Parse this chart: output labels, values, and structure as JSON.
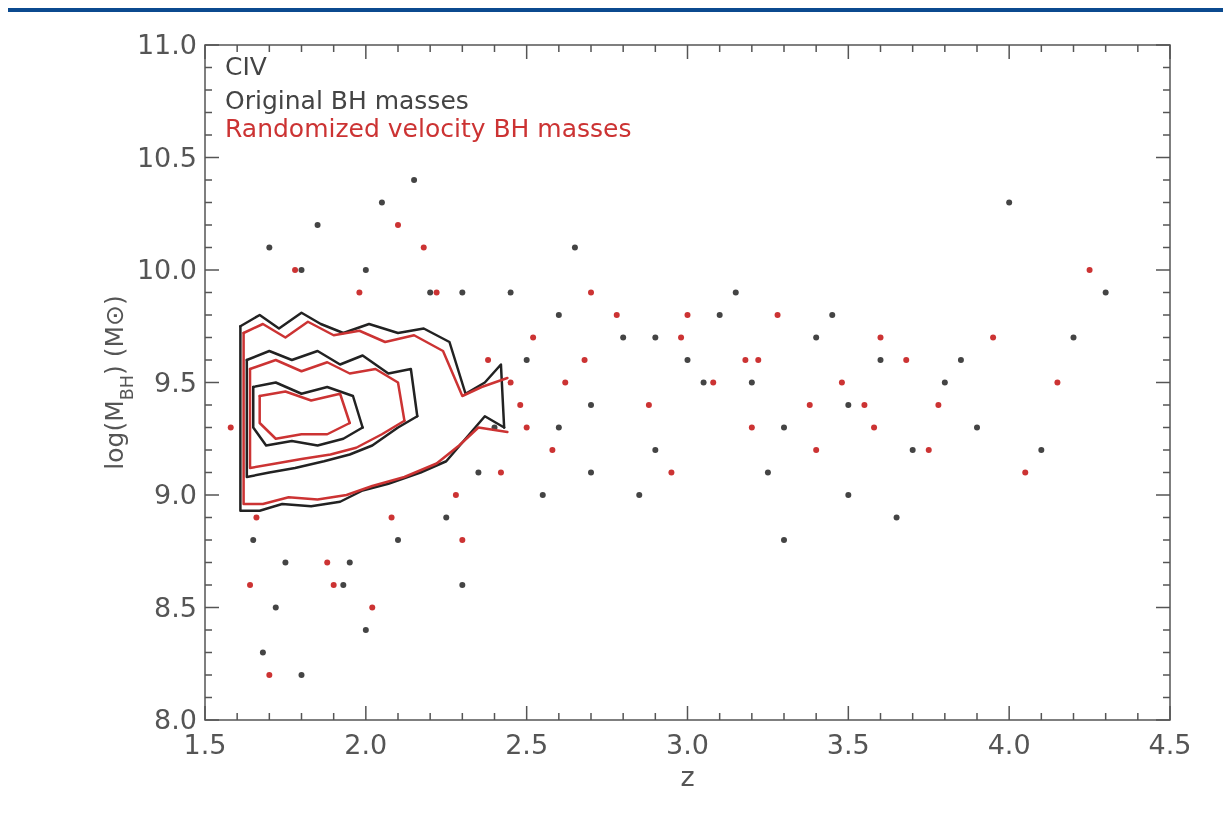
{
  "chart_data": {
    "type": "scatter",
    "xlabel": "z",
    "ylabel": "log(M$_{BH}$) (M⊙)",
    "annotations": [
      "CIV"
    ],
    "legend": "top left",
    "marker": "circle",
    "grid": false,
    "xlim": [
      1.5,
      4.5
    ],
    "ylim": [
      8.0,
      11.0
    ],
    "xticks": [
      1.5,
      {
        "value": 1.6,
        "label": null
      },
      {
        "value": 1.7,
        "label": null
      },
      {
        "value": 1.8,
        "label": null
      },
      {
        "value": 1.9,
        "label": null
      },
      {
        "value": 2.0,
        "label": "2.0"
      },
      {
        "value": 2.1,
        "label": null
      },
      {
        "value": 2.2,
        "label": null
      },
      {
        "value": 2.3,
        "label": null
      },
      {
        "value": 2.4,
        "label": null
      },
      2.5,
      {
        "value": 2.6,
        "label": null
      },
      {
        "value": 2.7,
        "label": null
      },
      {
        "value": 2.8,
        "label": null
      },
      {
        "value": 2.9,
        "label": null
      },
      {
        "value": 3.0,
        "label": "3.0"
      },
      {
        "value": 3.1,
        "label": null
      },
      {
        "value": 3.2,
        "label": null
      },
      {
        "value": 3.3,
        "label": null
      },
      {
        "value": 3.4,
        "label": null
      },
      3.5,
      {
        "value": 3.6,
        "label": null
      },
      {
        "value": 3.7,
        "label": null
      },
      {
        "value": 3.8,
        "label": null
      },
      {
        "value": 3.9,
        "label": null
      },
      {
        "value": 4.0,
        "label": "4.0"
      },
      {
        "value": 4.1,
        "label": null
      },
      {
        "value": 4.2,
        "label": null
      },
      {
        "value": 4.3,
        "label": null
      },
      {
        "value": 4.4,
        "label": null
      },
      4.5
    ],
    "yticks": [
      {
        "value": 8.0,
        "label": "8.0"
      },
      {
        "value": 8.1,
        "label": null
      },
      {
        "value": 8.2,
        "label": null
      },
      {
        "value": 8.3,
        "label": null
      },
      {
        "value": 8.4,
        "label": null
      },
      8.5,
      {
        "value": 8.6,
        "label": null
      },
      {
        "value": 8.7,
        "label": null
      },
      {
        "value": 8.8,
        "label": null
      },
      {
        "value": 8.9,
        "label": null
      },
      {
        "value": 9.0,
        "label": "9.0"
      },
      {
        "value": 9.1,
        "label": null
      },
      {
        "value": 9.2,
        "label": null
      },
      {
        "value": 9.3,
        "label": null
      },
      {
        "value": 9.4,
        "label": null
      },
      9.5,
      {
        "value": 9.6,
        "label": null
      },
      {
        "value": 9.7,
        "label": null
      },
      {
        "value": 9.8,
        "label": null
      },
      {
        "value": 9.9,
        "label": null
      },
      {
        "value": 10.0,
        "label": "10.0"
      },
      {
        "value": 10.1,
        "label": null
      },
      {
        "value": 10.2,
        "label": null
      },
      {
        "value": 10.3,
        "label": null
      },
      {
        "value": 10.4,
        "label": null
      },
      10.5,
      {
        "value": 10.6,
        "label": null
      },
      {
        "value": 10.7,
        "label": null
      },
      {
        "value": 10.8,
        "label": null
      },
      {
        "value": 10.9,
        "label": null
      },
      {
        "value": 11.0,
        "label": "11.0"
      }
    ],
    "series": [
      {
        "name": "Original BH masses",
        "color": "#444444",
        "x": [
          1.65,
          1.7,
          1.75,
          1.8,
          1.93,
          2.0,
          2.1,
          2.2,
          2.3,
          2.4,
          2.5,
          2.55,
          2.6,
          2.7,
          2.8,
          2.9,
          3.0,
          3.1,
          3.2,
          3.3,
          3.4,
          3.5,
          3.6,
          3.7,
          3.8,
          3.9,
          4.0,
          4.1,
          4.2,
          4.3,
          1.68,
          1.85,
          2.05,
          2.25,
          2.45,
          2.65,
          2.85,
          3.05,
          3.25,
          3.45,
          3.65,
          3.85,
          1.72,
          1.95,
          2.15,
          2.35,
          2.6,
          2.9,
          3.15,
          3.5,
          1.8,
          2.0,
          2.3,
          2.7,
          3.3
        ],
        "values": [
          8.8,
          10.1,
          8.7,
          10.0,
          8.6,
          10.0,
          8.8,
          9.9,
          9.9,
          9.3,
          9.6,
          9.0,
          9.8,
          9.4,
          9.7,
          9.2,
          9.6,
          9.8,
          9.5,
          9.3,
          9.7,
          9.4,
          9.6,
          9.2,
          9.5,
          9.3,
          10.3,
          9.2,
          9.7,
          9.9,
          8.3,
          10.2,
          10.3,
          8.9,
          9.9,
          10.1,
          9.0,
          9.5,
          9.1,
          9.8,
          8.9,
          9.6,
          8.5,
          8.7,
          10.4,
          9.1,
          9.3,
          9.7,
          9.9,
          9.0,
          8.2,
          8.4,
          8.6,
          9.1,
          8.8
        ]
      },
      {
        "name": "Randomized velocity BH masses",
        "color": "#cc3333",
        "x": [
          1.58,
          1.66,
          1.78,
          1.88,
          1.98,
          2.08,
          2.18,
          2.28,
          2.38,
          2.45,
          2.48,
          2.52,
          2.58,
          2.68,
          2.78,
          2.88,
          2.98,
          3.08,
          3.18,
          3.28,
          3.38,
          3.48,
          3.58,
          3.68,
          3.78,
          3.95,
          4.05,
          4.15,
          4.25,
          1.7,
          1.9,
          2.1,
          2.3,
          2.5,
          2.7,
          2.95,
          3.2,
          3.4,
          3.6,
          3.75,
          1.64,
          2.02,
          2.22,
          2.42,
          2.62,
          3.0,
          3.22,
          3.55
        ],
        "values": [
          9.3,
          8.9,
          10.0,
          8.7,
          9.9,
          8.9,
          10.1,
          9.0,
          9.6,
          9.5,
          9.4,
          9.7,
          9.2,
          9.6,
          9.8,
          9.4,
          9.7,
          9.5,
          9.6,
          9.8,
          9.4,
          9.5,
          9.3,
          9.6,
          9.4,
          9.7,
          9.1,
          9.5,
          10.0,
          8.2,
          8.6,
          10.2,
          8.8,
          9.3,
          9.9,
          9.1,
          9.3,
          9.2,
          9.7,
          9.2,
          8.6,
          8.5,
          9.9,
          9.1,
          9.5,
          9.8,
          9.6,
          9.4
        ]
      },
      {
        "type": "line",
        "marker": "none",
        "color": "#222222",
        "x": [
          1.61,
          1.67,
          1.73,
          1.8,
          1.86,
          1.93,
          2.01,
          2.1,
          2.18,
          2.26,
          2.31,
          2.37,
          2.42,
          2.43
        ],
        "values": [
          9.75,
          9.8,
          9.74,
          9.81,
          9.76,
          9.72,
          9.76,
          9.72,
          9.74,
          9.68,
          9.45,
          9.5,
          9.58,
          9.3
        ]
      },
      {
        "type": "line",
        "marker": "none",
        "color": "#222222",
        "x": [
          1.61,
          1.61,
          1.67,
          1.74,
          1.83,
          1.92,
          1.99,
          2.07,
          2.17,
          2.25,
          2.31,
          2.37,
          2.43
        ],
        "values": [
          9.75,
          8.93,
          8.93,
          8.96,
          8.95,
          8.97,
          9.02,
          9.05,
          9.1,
          9.15,
          9.25,
          9.35,
          9.3
        ]
      },
      {
        "type": "line",
        "marker": "none",
        "color": "#222222",
        "x": [
          1.63,
          1.7,
          1.77,
          1.85,
          1.92,
          1.99,
          2.07,
          2.14,
          2.16
        ],
        "values": [
          9.6,
          9.64,
          9.6,
          9.64,
          9.58,
          9.62,
          9.54,
          9.56,
          9.35
        ]
      },
      {
        "type": "line",
        "marker": "none",
        "color": "#222222",
        "x": [
          1.63,
          1.63,
          1.7,
          1.78,
          1.87,
          1.95,
          2.02,
          2.1,
          2.16
        ],
        "values": [
          9.6,
          9.08,
          9.1,
          9.12,
          9.15,
          9.18,
          9.22,
          9.3,
          9.35
        ]
      },
      {
        "type": "line",
        "marker": "none",
        "color": "#222222",
        "x": [
          1.65,
          1.72,
          1.8,
          1.88,
          1.96,
          1.99
        ],
        "values": [
          9.48,
          9.5,
          9.45,
          9.48,
          9.44,
          9.3
        ]
      },
      {
        "type": "line",
        "marker": "none",
        "color": "#222222",
        "x": [
          1.65,
          1.65,
          1.69,
          1.77,
          1.85,
          1.93,
          1.99
        ],
        "values": [
          9.48,
          9.3,
          9.22,
          9.24,
          9.22,
          9.25,
          9.3
        ]
      },
      {
        "type": "line",
        "marker": "none",
        "color": "#cc3333",
        "x": [
          1.62,
          1.68,
          1.75,
          1.82,
          1.9,
          1.98,
          2.06,
          2.15,
          2.24,
          2.3,
          2.36,
          2.44
        ],
        "values": [
          9.72,
          9.76,
          9.7,
          9.77,
          9.71,
          9.73,
          9.68,
          9.71,
          9.64,
          9.44,
          9.48,
          9.52
        ]
      },
      {
        "type": "line",
        "marker": "none",
        "color": "#cc3333",
        "x": [
          1.62,
          1.62,
          1.68,
          1.76,
          1.85,
          1.94,
          2.02,
          2.12,
          2.22,
          2.29,
          2.35,
          2.44
        ],
        "values": [
          9.72,
          8.96,
          8.96,
          8.99,
          8.98,
          9.0,
          9.04,
          9.08,
          9.14,
          9.22,
          9.3,
          9.28
        ]
      },
      {
        "type": "line",
        "marker": "none",
        "color": "#cc3333",
        "x": [
          1.64,
          1.72,
          1.8,
          1.88,
          1.95,
          2.03,
          2.1,
          2.12
        ],
        "values": [
          9.56,
          9.6,
          9.55,
          9.59,
          9.54,
          9.56,
          9.5,
          9.33
        ]
      },
      {
        "type": "line",
        "marker": "none",
        "color": "#cc3333",
        "x": [
          1.64,
          1.64,
          1.72,
          1.8,
          1.89,
          1.97,
          2.05,
          2.12
        ],
        "values": [
          9.56,
          9.12,
          9.14,
          9.16,
          9.18,
          9.21,
          9.27,
          9.33
        ]
      },
      {
        "type": "line",
        "marker": "none",
        "color": "#cc3333",
        "x": [
          1.67,
          1.75,
          1.83,
          1.92,
          1.95
        ],
        "values": [
          9.44,
          9.46,
          9.42,
          9.45,
          9.32
        ]
      },
      {
        "type": "line",
        "marker": "none",
        "color": "#cc3333",
        "x": [
          1.67,
          1.67,
          1.72,
          1.8,
          1.88,
          1.95
        ],
        "values": [
          9.44,
          9.32,
          9.25,
          9.27,
          9.27,
          9.32
        ]
      }
    ]
  }
}
